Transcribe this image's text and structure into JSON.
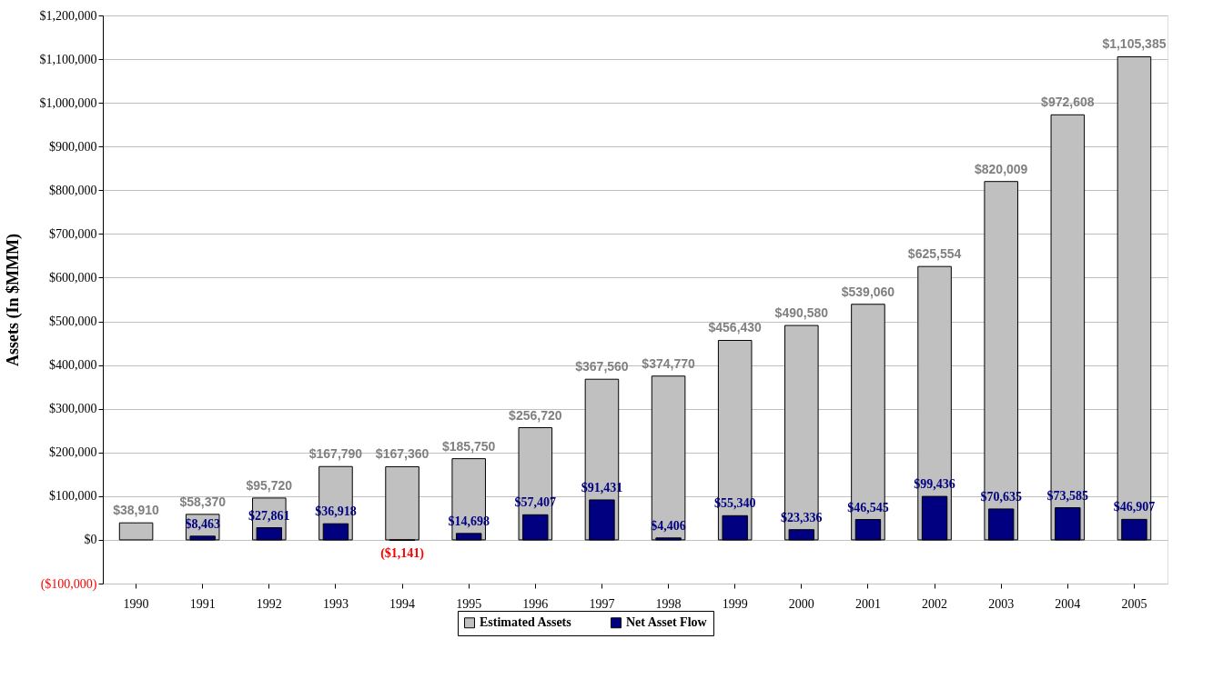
{
  "chart_data": {
    "type": "bar",
    "ylabel": "Assets (In $MMM)",
    "categories": [
      "1990",
      "1991",
      "1992",
      "1993",
      "1994",
      "1995",
      "1996",
      "1997",
      "1998",
      "1999",
      "2000",
      "2001",
      "2002",
      "2003",
      "2004",
      "2005"
    ],
    "series": [
      {
        "name": "Estimated Assets",
        "color": "#c0c0c0",
        "values": [
          38910,
          58370,
          95720,
          167790,
          167360,
          185750,
          256720,
          367560,
          374770,
          456430,
          490580,
          539060,
          625554,
          820009,
          972608,
          1105385
        ],
        "value_labels": [
          "$38,910",
          "$58,370",
          "$95,720",
          "$167,790",
          "$167,360",
          "$185,750",
          "$256,720",
          "$367,560",
          "$374,770",
          "$456,430",
          "$490,580",
          "$539,060",
          "$625,554",
          "$820,009",
          "$972,608",
          "$1,105,385"
        ]
      },
      {
        "name": "Net Asset Flow",
        "color": "#000080",
        "values": [
          null,
          8463,
          27861,
          36918,
          -1141,
          14698,
          57407,
          91431,
          4406,
          55340,
          23336,
          46545,
          99436,
          70635,
          73585,
          46907
        ],
        "value_labels": [
          null,
          "$8,463",
          "$27,861",
          "$36,918",
          "($1,141)",
          "$14,698",
          "$57,407",
          "$91,431",
          "$4,406",
          "$55,340",
          "$23,336",
          "$46,545",
          "$99,436",
          "$70,635",
          "$73,585",
          "$46,907"
        ]
      }
    ],
    "ylim": [
      -100000,
      1200000
    ],
    "yticks": [
      {
        "value": -100000,
        "label": "($100,000)"
      },
      {
        "value": 0,
        "label": "$0"
      },
      {
        "value": 100000,
        "label": "$100,000"
      },
      {
        "value": 200000,
        "label": "$200,000"
      },
      {
        "value": 300000,
        "label": "$300,000"
      },
      {
        "value": 400000,
        "label": "$400,000"
      },
      {
        "value": 500000,
        "label": "$500,000"
      },
      {
        "value": 600000,
        "label": "$600,000"
      },
      {
        "value": 700000,
        "label": "$700,000"
      },
      {
        "value": 800000,
        "label": "$800,000"
      },
      {
        "value": 900000,
        "label": "$900,000"
      },
      {
        "value": 1000000,
        "label": "$1,000,000"
      },
      {
        "value": 1100000,
        "label": "$1,100,000"
      },
      {
        "value": 1200000,
        "label": "$1,200,000"
      }
    ],
    "grid": "y",
    "legend": "bottom"
  }
}
